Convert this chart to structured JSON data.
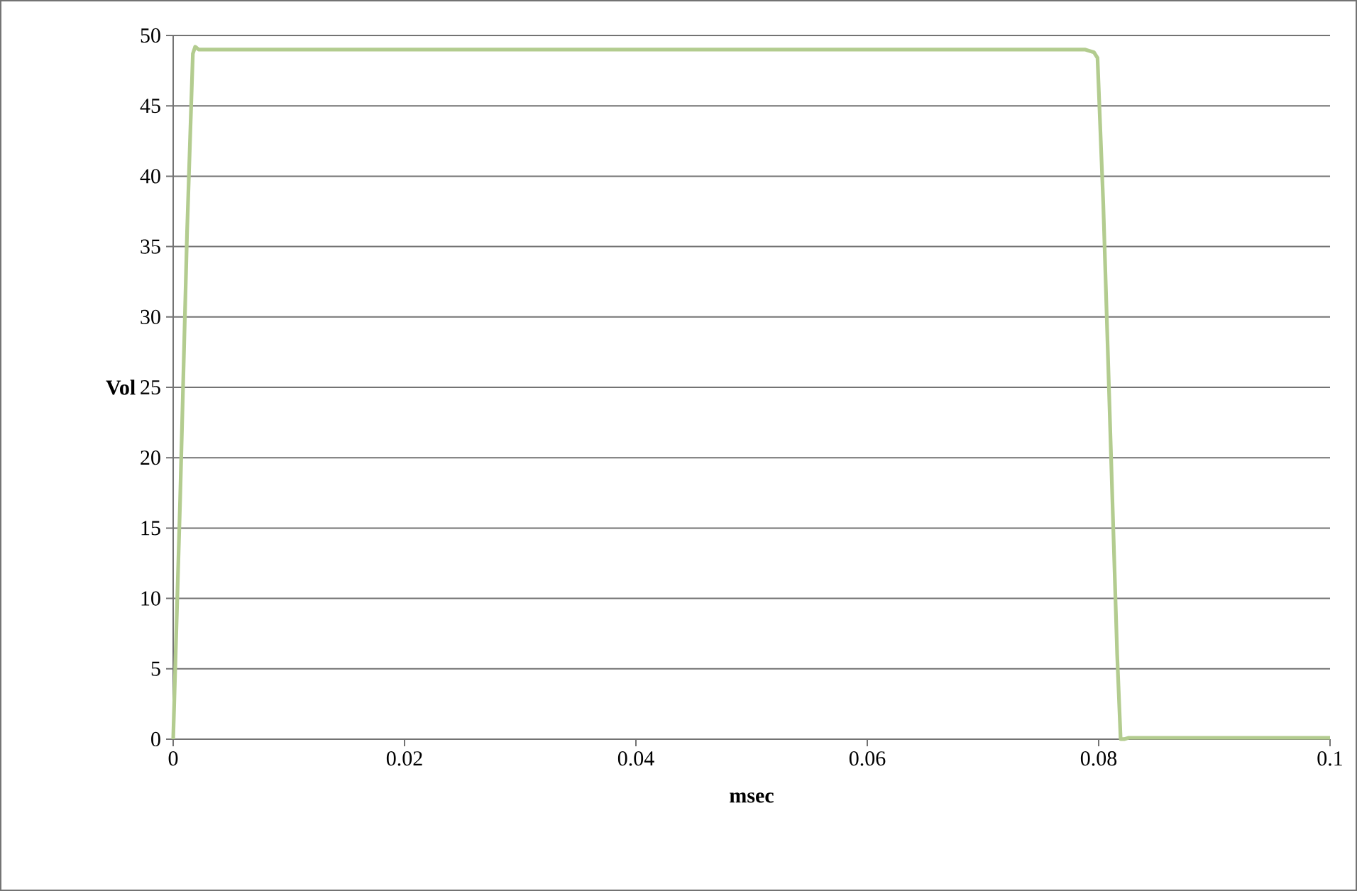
{
  "chart_data": {
    "type": "line",
    "xlabel": "msec",
    "ylabel": "Vol",
    "series": [
      {
        "color": "#b3cc8f",
        "x": [
          0,
          0.0006,
          0.0012,
          0.0017,
          0.0019,
          0.0022,
          0.04,
          0.0788,
          0.0796,
          0.0799,
          0.0804,
          0.081,
          0.0816,
          0.0819,
          0.0822,
          0.0826,
          0.1
        ],
        "values": [
          0,
          17,
          36,
          48.7,
          49.2,
          49,
          49,
          49,
          48.8,
          48.4,
          38,
          22,
          6,
          0,
          0,
          0.1,
          0.1
        ]
      }
    ],
    "xlim": [
      0,
      0.1
    ],
    "xticks": [
      0,
      0.02,
      0.04,
      0.06,
      0.08,
      0.1
    ],
    "ylim": [
      0,
      50
    ],
    "yticks": [
      0,
      5,
      10,
      15,
      20,
      25,
      30,
      35,
      40,
      45,
      50
    ],
    "grid": "y",
    "marker": "none",
    "line_style": "solid"
  }
}
